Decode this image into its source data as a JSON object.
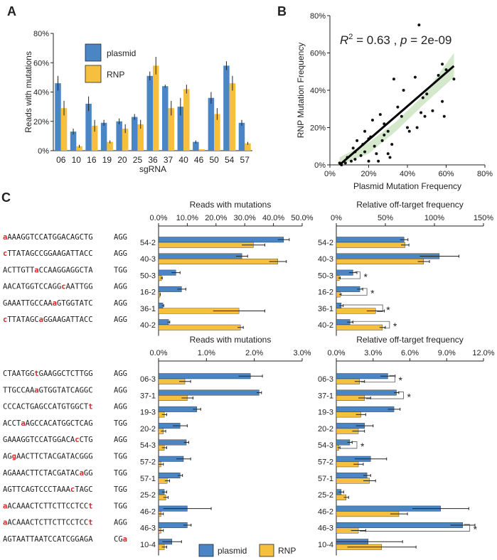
{
  "colors": {
    "plasmid": "#4a86c5",
    "rnp": "#f6c03e",
    "mut": "#d62728",
    "trend": "#000000",
    "ci": "#cfe6c7",
    "dot": "#111111"
  },
  "panels": {
    "A": "A",
    "B": "B",
    "C": "C"
  },
  "chart_data": [
    {
      "id": "A",
      "type": "bar",
      "title": "",
      "xlabel": "sgRNA",
      "ylabel": "Reads with mutations",
      "ylim": [
        0,
        80
      ],
      "yticks": [
        "0%",
        "20%",
        "40%",
        "60%",
        "80%"
      ],
      "legend": [
        "plasmid",
        "RNP"
      ],
      "legend_position": "top-left",
      "categories": [
        "06",
        "10",
        "16",
        "19",
        "20",
        "25",
        "36",
        "37",
        "40",
        "46",
        "50",
        "54",
        "57"
      ],
      "series": [
        {
          "name": "plasmid",
          "values": [
            46,
            13,
            32,
            19,
            20,
            23,
            51,
            44,
            30,
            6,
            36,
            58,
            19
          ],
          "err": [
            5,
            2,
            5,
            2,
            2,
            2,
            3,
            1,
            6,
            1,
            4,
            3,
            2
          ]
        },
        {
          "name": "RNP",
          "values": [
            29,
            3,
            17,
            6,
            15,
            18,
            58,
            29,
            42,
            1,
            25,
            46,
            5
          ],
          "err": [
            5,
            1,
            4,
            1,
            3,
            3,
            6,
            5,
            3,
            0,
            4,
            5,
            1
          ]
        }
      ]
    },
    {
      "id": "B",
      "type": "scatter",
      "xlabel": "Plasmid Mutation Frequency",
      "ylabel": "RNP Mutation Frequency",
      "xlim": [
        0,
        80
      ],
      "ylim": [
        0,
        80
      ],
      "xticks": [
        "0%",
        "20%",
        "40%",
        "60%",
        "80%"
      ],
      "yticks": [
        "0%",
        "20%",
        "40%",
        "60%",
        "80%"
      ],
      "annotation_prefix": "R",
      "annotation_sup": "2",
      "annotation_rest": " = 0.63 , ",
      "annotation_p": "p",
      "annotation_pval": " = 2e-09",
      "fit": [
        [
          5,
          0
        ],
        [
          64,
          53
        ]
      ],
      "points": [
        [
          5,
          1
        ],
        [
          6,
          0
        ],
        [
          8,
          1
        ],
        [
          9,
          4
        ],
        [
          11,
          2
        ],
        [
          12,
          9
        ],
        [
          13,
          3
        ],
        [
          13,
          7
        ],
        [
          14,
          13
        ],
        [
          16,
          5
        ],
        [
          17,
          11
        ],
        [
          18,
          18
        ],
        [
          18,
          7
        ],
        [
          20,
          2
        ],
        [
          20,
          14
        ],
        [
          21,
          15
        ],
        [
          22,
          24
        ],
        [
          23,
          10
        ],
        [
          24,
          6
        ],
        [
          25,
          2
        ],
        [
          26,
          27
        ],
        [
          27,
          13
        ],
        [
          28,
          16
        ],
        [
          28,
          22
        ],
        [
          30,
          18
        ],
        [
          30,
          6
        ],
        [
          31,
          4
        ],
        [
          32,
          11
        ],
        [
          33,
          46
        ],
        [
          35,
          31
        ],
        [
          37,
          26
        ],
        [
          38,
          40
        ],
        [
          40,
          20
        ],
        [
          41,
          18
        ],
        [
          44,
          47
        ],
        [
          45,
          20
        ],
        [
          46,
          75
        ],
        [
          47,
          28
        ],
        [
          48,
          36
        ],
        [
          49,
          26
        ],
        [
          50,
          38
        ],
        [
          53,
          29
        ],
        [
          56,
          48
        ],
        [
          58,
          54
        ],
        [
          58,
          34
        ],
        [
          59,
          26
        ],
        [
          60,
          51
        ],
        [
          64,
          46
        ]
      ]
    },
    {
      "id": "C1",
      "type": "bar",
      "orientation": "horizontal",
      "title": "Reads with mutations",
      "xlim": [
        0,
        50
      ],
      "xticks": [
        "0.0%",
        "10.0%",
        "20.0%",
        "30.0%",
        "40.0%",
        "50.0%"
      ],
      "categories": [
        "54-2",
        "40-3",
        "50-3",
        "16-2",
        "36-1",
        "40-2"
      ],
      "series": [
        {
          "name": "plasmid",
          "values": [
            43.5,
            29,
            6,
            8,
            1.5,
            3.5
          ],
          "err": [
            2,
            2,
            1.5,
            1.5,
            0.3,
            0.4
          ]
        },
        {
          "name": "RNP",
          "values": [
            33,
            41.5,
            1,
            0.5,
            28,
            28.5
          ],
          "err": [
            4,
            3,
            0.3,
            0.1,
            9,
            1
          ]
        }
      ]
    },
    {
      "id": "C2",
      "type": "bar",
      "orientation": "horizontal",
      "title": "Relative off-target frequency",
      "xlim": [
        0,
        150
      ],
      "xticks": [
        "0%",
        "50%",
        "100%",
        "150%"
      ],
      "categories": [
        "54-2",
        "40-3",
        "50-3",
        "16-2",
        "36-1",
        "40-2"
      ],
      "series": [
        {
          "name": "plasmid",
          "values": [
            69,
            105,
            17,
            24,
            5,
            14
          ],
          "err": [
            4,
            20,
            4,
            3,
            2,
            3
          ]
        },
        {
          "name": "RNP",
          "values": [
            70,
            89,
            3,
            4,
            40,
            47
          ],
          "err": [
            4,
            6,
            1,
            1,
            9,
            3
          ]
        }
      ],
      "significant": [
        false,
        false,
        true,
        true,
        true,
        true
      ]
    },
    {
      "id": "C3",
      "type": "bar",
      "orientation": "horizontal",
      "title": "Reads with mutations",
      "xlim": [
        0,
        3
      ],
      "xticks": [
        "0.0%",
        "1.0%",
        "2.0%",
        "3.0%"
      ],
      "categories": [
        "06-3",
        "37-1",
        "19-3",
        "20-2",
        "54-3",
        "57-2",
        "57-1",
        "25-2",
        "46-2",
        "46-3",
        "10-4"
      ],
      "series": [
        {
          "name": "plasmid",
          "values": [
            1.92,
            2.1,
            0.8,
            0.45,
            0.58,
            0.52,
            0.45,
            0.12,
            0.6,
            0.6,
            0.28
          ],
          "err": [
            0.25,
            0.05,
            0.08,
            0.15,
            0.05,
            0.15,
            0.05,
            0.05,
            0.5,
            0.08,
            0.2
          ]
        },
        {
          "name": "RNP",
          "values": [
            0.55,
            0.6,
            0.12,
            0.1,
            0.12,
            0.05,
            0.18,
            0.15,
            0.05,
            0.05,
            0.12
          ],
          "err": [
            0.12,
            0.12,
            0.05,
            0.05,
            0.05,
            0.05,
            0.05,
            0.05,
            0.05,
            0.05,
            0.05
          ]
        }
      ]
    },
    {
      "id": "C4",
      "type": "bar",
      "orientation": "horizontal",
      "title": "Relative off-target frequency",
      "xlim": [
        0,
        12
      ],
      "xticks": [
        "0.0%",
        "3.0%",
        "6.0%",
        "9.0%",
        "12.0%"
      ],
      "categories": [
        "06-3",
        "37-1",
        "19-3",
        "20-2",
        "54-3",
        "57-2",
        "57-1",
        "25-2",
        "46-2",
        "46-3",
        "10-4"
      ],
      "series": [
        {
          "name": "plasmid",
          "values": [
            4.2,
            4.9,
            4.7,
            2.3,
            1.1,
            2.8,
            2.5,
            0.4,
            8.5,
            10.3,
            2.6
          ],
          "err": [
            0.6,
            0.2,
            0.5,
            0.7,
            0.2,
            1.3,
            0.3,
            0.2,
            2.3,
            1.0,
            2.8
          ]
        },
        {
          "name": "RNP",
          "values": [
            1.9,
            2.3,
            2.0,
            1.8,
            0.2,
            1.8,
            2.7,
            0.8,
            5.1,
            1.8,
            3.7
          ],
          "err": [
            0.4,
            0.5,
            0.4,
            0.5,
            0.1,
            0.4,
            0.5,
            0.2,
            0.7,
            0.6,
            2.8
          ]
        }
      ],
      "significant": [
        true,
        true,
        false,
        false,
        true,
        false,
        false,
        false,
        false,
        true,
        false
      ]
    }
  ],
  "sequences_top": [
    {
      "seq": "aAAAGGTCCATGGACAGCTG",
      "mut": [
        0
      ],
      "pam": "AGG"
    },
    {
      "seq": "cTTATAGCCGGAAGATTACC",
      "mut": [
        0
      ],
      "pam": "AGG"
    },
    {
      "seq": "ACTTGTTaCCAAGGAGGCTA",
      "mut": [
        7
      ],
      "pam": "TGG"
    },
    {
      "seq": "AACATGGTCCAGGcAATTGG",
      "mut": [
        13
      ],
      "pam": "AGG"
    },
    {
      "seq": "GAAATTGCCAAaGTGGTATC",
      "mut": [
        11
      ],
      "pam": "AGG"
    },
    {
      "seq": "cTTATAGCaGGAAGATTACC",
      "mut": [
        0,
        8
      ],
      "pam": "AGG"
    }
  ],
  "sequences_bottom": [
    {
      "seq": "CTAATGGtGAAGGCTCTTGG",
      "mut": [
        7
      ],
      "pam": "AGG"
    },
    {
      "seq": "TTGCCAAaGTGGTATCAGGC",
      "mut": [
        7
      ],
      "pam": "AGG"
    },
    {
      "seq": "CCCACTGAGCCATGTGGCTt",
      "mut": [
        19
      ],
      "pam": "AGG"
    },
    {
      "seq": "ACCTaAGCCACATGGCTCAG",
      "mut": [
        4
      ],
      "pam": "TGG"
    },
    {
      "seq": "GAAAGGTCCATGGACAcCTG",
      "mut": [
        16
      ],
      "pam": "AGG"
    },
    {
      "seq": "AGgAACTTCTACGATACGGG",
      "mut": [
        2
      ],
      "pam": "TGG"
    },
    {
      "seq": "AGAAACTTCTACGATACaGG",
      "mut": [
        17
      ],
      "pam": "TGG"
    },
    {
      "seq": "AGTTCAGTCCCTAAAcTAGC",
      "mut": [
        15
      ],
      "pam": "TGG"
    },
    {
      "seq": "aACAAACTCTTCTTCCTCCt",
      "mut": [
        0,
        19
      ],
      "pam": "TGG"
    },
    {
      "seq": "aACAAACTCTTCTTCCTCCt",
      "mut": [
        0,
        19
      ],
      "pam": "AGG"
    },
    {
      "seq": "AGTAATTAATCCATCGGAGA",
      "mut": [],
      "pam": "CGa",
      "pam_mut": [
        2
      ]
    }
  ],
  "star": "*",
  "legend_bottom": [
    "plasmid",
    "RNP"
  ]
}
